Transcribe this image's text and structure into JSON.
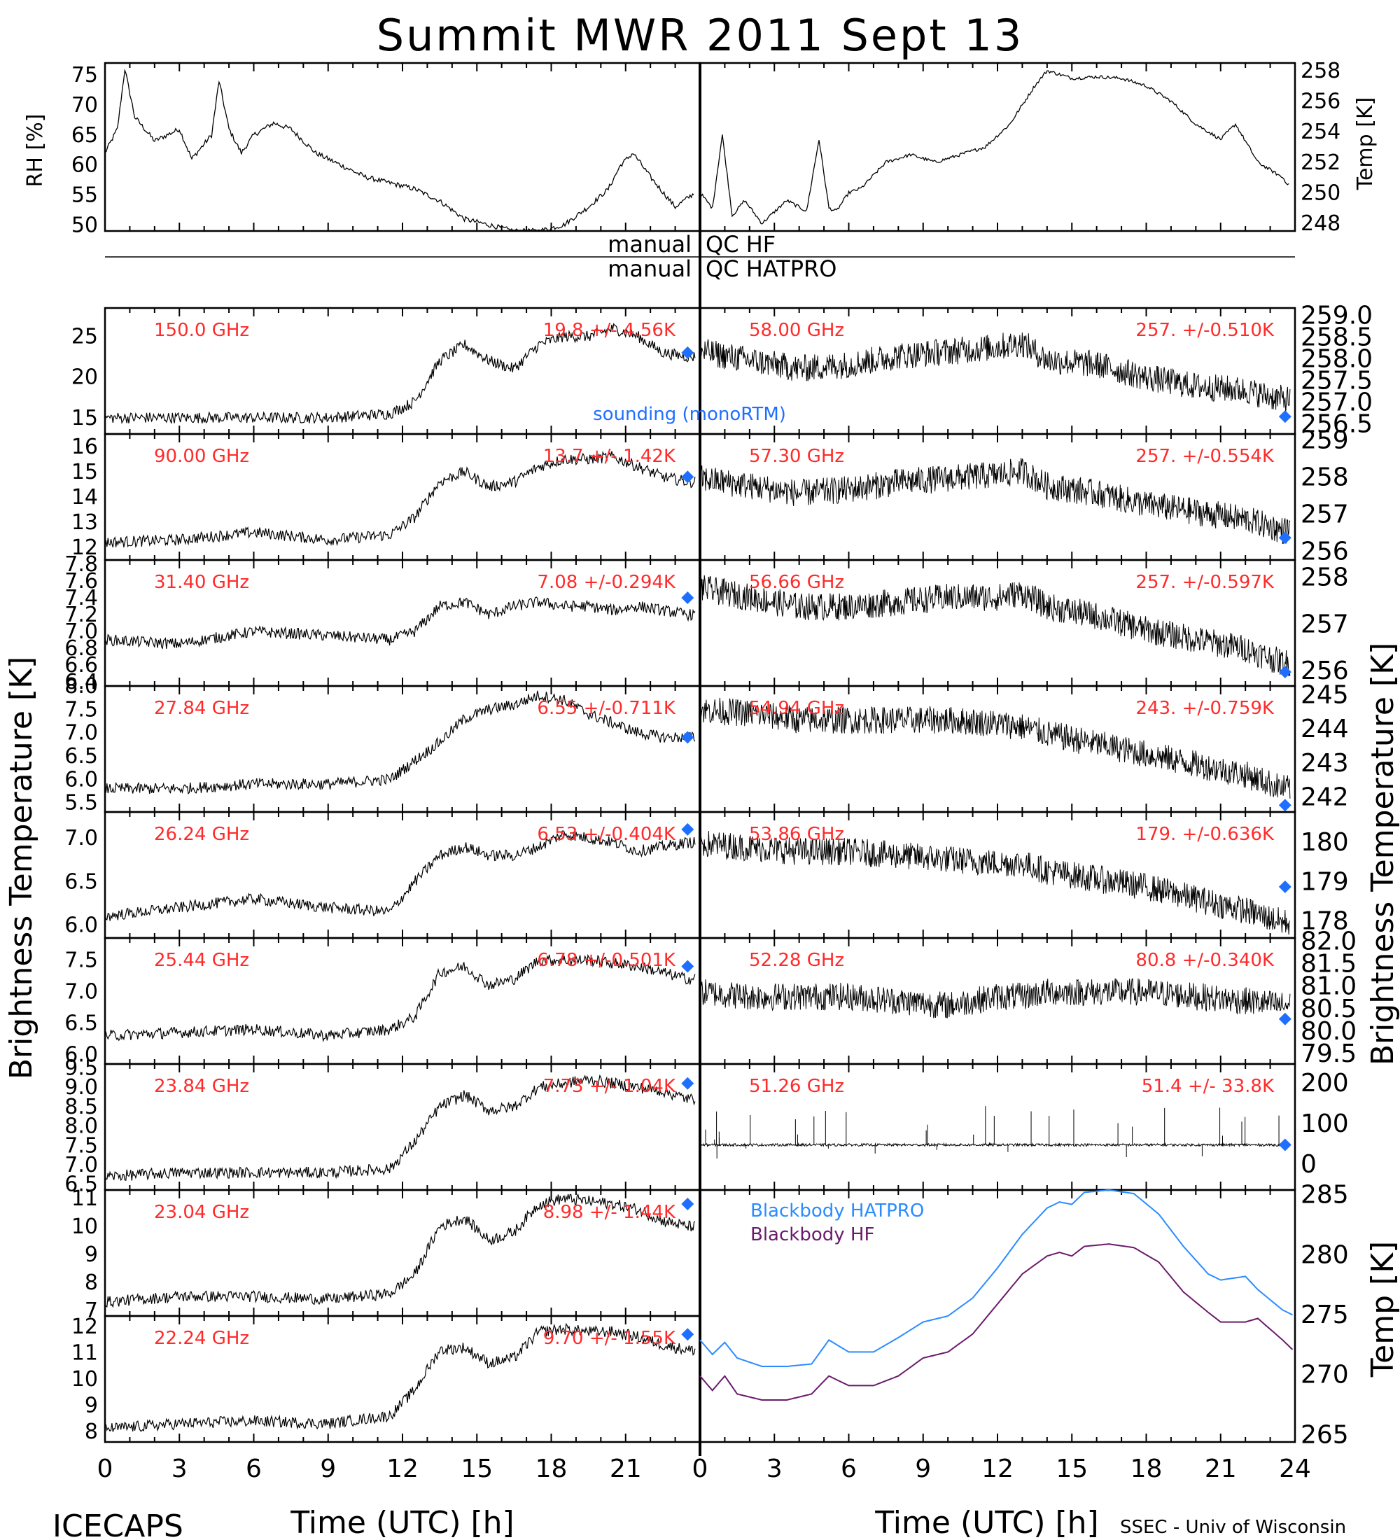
{
  "title": "Summit MWR 2011 Sept 13",
  "footer": {
    "project": "ICECAPS",
    "credit": "SSEC - Univ of Wisconsin"
  },
  "colors": {
    "label_red": "#ff2a2a",
    "sounding_blue": "#1f6fff",
    "hatpro_blue": "#2a8cff",
    "hf_purple": "#6a1a6a",
    "trace": "#000000"
  },
  "x_axis": {
    "title": "Time (UTC) [h]",
    "ticks": [
      "0",
      "3",
      "6",
      "9",
      "12",
      "15",
      "18",
      "21",
      "24"
    ],
    "range": [
      0,
      24
    ]
  },
  "met": {
    "left_ylabel": "RH [%]",
    "right_ylabel": "Temp [K]",
    "left_ticks": [
      "50",
      "55",
      "60",
      "65",
      "70",
      "75"
    ],
    "right_ticks": [
      "248",
      "250",
      "252",
      "254",
      "256",
      "258"
    ]
  },
  "qc": {
    "row1_left": "manual",
    "row1_right": "QC HF",
    "row2_left": "manual",
    "row2_right": "QC HATPRO"
  },
  "left_ylabel": "Brightness Temperature [K]",
  "right_ylabel": "Brightness Temperature [K]",
  "bb_ylabel": "Temp [K]",
  "sounding_label": "sounding (monoRTM)",
  "left_panels": [
    {
      "freq": "150.0 GHz",
      "stat": "19.8 +/- 4.56K",
      "ticks": [
        "15",
        "20",
        "25"
      ]
    },
    {
      "freq": "90.00 GHz",
      "stat": "13.7 +/- 1.42K",
      "ticks": [
        "12",
        "13",
        "14",
        "15",
        "16"
      ]
    },
    {
      "freq": "31.40 GHz",
      "stat": "7.08 +/-0.294K",
      "ticks": [
        "6.4",
        "6.6",
        "6.8",
        "7.0",
        "7.2",
        "7.4",
        "7.6",
        "7.8"
      ]
    },
    {
      "freq": "27.84 GHz",
      "stat": "6.55 +/-0.711K",
      "ticks": [
        "5.5",
        "6.0",
        "6.5",
        "7.0",
        "7.5",
        "8.0"
      ]
    },
    {
      "freq": "26.24 GHz",
      "stat": "6.53 +/-0.404K",
      "ticks": [
        "6.0",
        "6.5",
        "7.0"
      ]
    },
    {
      "freq": "25.44 GHz",
      "stat": "6.78 +/-0.501K",
      "ticks": [
        "6.0",
        "6.5",
        "7.0",
        "7.5"
      ]
    },
    {
      "freq": "23.84 GHz",
      "stat": "7.73 +/- 1.04K",
      "ticks": [
        "6.5",
        "7.0",
        "7.5",
        "8.0",
        "8.5",
        "9.0",
        "9.5"
      ]
    },
    {
      "freq": "23.04 GHz",
      "stat": "8.98 +/- 1.44K",
      "ticks": [
        "7",
        "8",
        "9",
        "10",
        "11"
      ]
    },
    {
      "freq": "22.24 GHz",
      "stat": "9.70 +/- 1.55K",
      "ticks": [
        "8",
        "9",
        "10",
        "11",
        "12"
      ]
    }
  ],
  "right_panels": [
    {
      "freq": "58.00 GHz",
      "stat": "257. +/-0.510K",
      "ticks": [
        "256.5",
        "257.0",
        "257.5",
        "258.0",
        "258.5",
        "259.0"
      ]
    },
    {
      "freq": "57.30 GHz",
      "stat": "257. +/-0.554K",
      "ticks": [
        "256",
        "257",
        "258",
        "259"
      ]
    },
    {
      "freq": "56.66 GHz",
      "stat": "257. +/-0.597K",
      "ticks": [
        "256",
        "257",
        "258"
      ]
    },
    {
      "freq": "54.94 GHz",
      "stat": "243. +/-0.759K",
      "ticks": [
        "242",
        "243",
        "244",
        "245"
      ]
    },
    {
      "freq": "53.86 GHz",
      "stat": "179. +/-0.636K",
      "ticks": [
        "178",
        "179",
        "180"
      ]
    },
    {
      "freq": "52.28 GHz",
      "stat": "80.8 +/-0.340K",
      "ticks": [
        "79.5",
        "80.0",
        "80.5",
        "81.0",
        "81.5",
        "82.0"
      ]
    },
    {
      "freq": "51.26 GHz",
      "stat": "51.4 +/- 33.8K",
      "ticks": [
        "0",
        "100",
        "200"
      ]
    }
  ],
  "blackbody": {
    "ticks": [
      "265",
      "270",
      "275",
      "280",
      "285"
    ],
    "legend": [
      {
        "name": "Blackbody HATPRO",
        "color": "#2a8cff"
      },
      {
        "name": "Blackbody HF",
        "color": "#6a1a6a"
      }
    ]
  },
  "chart_data": [
    {
      "type": "line",
      "title": "Summit MWR 2011 Sept 13",
      "panel": "met_rh",
      "ylabel": "RH [%]",
      "xlabel": "",
      "xlim": [
        0,
        24
      ],
      "ylim": [
        49,
        77
      ],
      "x": [
        0,
        0.5,
        0.8,
        1.2,
        2,
        3,
        3.5,
        4.3,
        4.6,
        5,
        5.5,
        6,
        6.8,
        7.5,
        8.5,
        9.5,
        10.5,
        11.5,
        12.5,
        13.5,
        14.5,
        15.5,
        16.5,
        17.5,
        18.5,
        19.5,
        20.3,
        20.8,
        21.3,
        22,
        23,
        24
      ],
      "values": [
        62,
        66,
        76,
        68,
        64,
        66,
        61,
        65,
        74,
        66,
        62,
        65,
        67,
        66,
        62,
        60,
        58,
        57,
        56,
        54,
        51,
        50,
        49,
        49,
        50,
        53,
        56,
        60,
        62,
        58,
        53,
        56
      ]
    },
    {
      "type": "line",
      "panel": "met_temp",
      "ylabel": "Temp [K]",
      "xlabel": "",
      "xlim": [
        0,
        24
      ],
      "ylim": [
        247.5,
        258.5
      ],
      "x": [
        0,
        0.5,
        0.9,
        1.3,
        1.8,
        2.5,
        3.5,
        4.3,
        4.8,
        5.2,
        5.5,
        6,
        6.5,
        7.5,
        8.5,
        9.5,
        10.5,
        11.5,
        12.5,
        13.5,
        14,
        15,
        16,
        17,
        18,
        19,
        20,
        21,
        21.6,
        22.5,
        23.5,
        24
      ],
      "values": [
        250,
        249,
        253.8,
        248.5,
        249.5,
        248,
        249.5,
        248.8,
        253.5,
        249,
        248.8,
        250,
        250.3,
        252,
        252.5,
        252,
        252.5,
        253,
        254.5,
        257,
        258,
        257.5,
        257.6,
        257.5,
        257,
        256,
        254.5,
        253.5,
        254.5,
        252,
        251,
        250
      ]
    },
    {
      "type": "line",
      "panel": "left_channels",
      "xlabel": "Time (UTC) [h]",
      "ylabel": "Brightness Temperature [K]",
      "xlim": [
        0,
        24
      ],
      "series_x": [
        0,
        3,
        6,
        9,
        11.5,
        12.5,
        13.5,
        14.5,
        15.5,
        16.5,
        17.5,
        18.5,
        19.5,
        20.5,
        21.5,
        22.5,
        23.5
      ],
      "series": [
        {
          "name": "150.0 GHz",
          "ylim": [
            13,
            28.5
          ],
          "values": [
            15,
            15,
            15,
            15,
            15.5,
            17,
            22,
            24,
            22,
            21,
            24,
            25,
            25,
            26,
            25,
            23,
            22.5
          ],
          "sounding": 23
        },
        {
          "name": "90.00 GHz",
          "ylim": [
            11.5,
            16.5
          ],
          "values": [
            12.2,
            12.3,
            12.6,
            12.3,
            12.5,
            13.2,
            14.6,
            15,
            14.4,
            14.6,
            15.2,
            15.5,
            15.5,
            15.6,
            15.2,
            14.8,
            14.6
          ],
          "sounding": 14.8
        },
        {
          "name": "31.40 GHz",
          "ylim": [
            6.35,
            7.85
          ],
          "values": [
            6.9,
            6.85,
            7.0,
            6.95,
            6.9,
            7.0,
            7.3,
            7.35,
            7.2,
            7.3,
            7.35,
            7.3,
            7.3,
            7.25,
            7.3,
            7.25,
            7.2
          ],
          "sounding": 7.4
        },
        {
          "name": "27.84 GHz",
          "ylim": [
            5.3,
            8.0
          ],
          "values": [
            5.8,
            5.8,
            5.9,
            5.9,
            6.0,
            6.4,
            6.8,
            7.3,
            7.5,
            7.6,
            7.8,
            7.7,
            7.4,
            7.2,
            7.0,
            6.9,
            6.9
          ],
          "sounding": 6.9
        },
        {
          "name": "26.24 GHz",
          "ylim": [
            5.85,
            7.3
          ],
          "values": [
            6.1,
            6.2,
            6.3,
            6.2,
            6.15,
            6.5,
            6.8,
            6.9,
            6.8,
            6.8,
            6.9,
            7.05,
            7.0,
            6.95,
            6.85,
            6.9,
            6.95
          ],
          "sounding": 7.1
        },
        {
          "name": "25.44 GHz",
          "ylim": [
            5.85,
            7.85
          ],
          "values": [
            6.3,
            6.35,
            6.4,
            6.3,
            6.4,
            6.6,
            7.3,
            7.4,
            7.1,
            7.2,
            7.5,
            7.5,
            7.5,
            7.45,
            7.4,
            7.3,
            7.2
          ],
          "sounding": 7.4
        },
        {
          "name": "23.84 GHz",
          "ylim": [
            6.35,
            9.6
          ],
          "values": [
            6.7,
            6.8,
            6.8,
            6.8,
            6.9,
            7.6,
            8.5,
            8.8,
            8.4,
            8.5,
            9.0,
            9.1,
            9.2,
            9.1,
            9.0,
            8.9,
            8.7
          ],
          "sounding": 9.1
        },
        {
          "name": "23.04 GHz",
          "ylim": [
            6.8,
            11.3
          ],
          "values": [
            7.3,
            7.5,
            7.5,
            7.4,
            7.6,
            8.3,
            10.0,
            10.3,
            9.5,
            9.8,
            10.8,
            11.0,
            10.9,
            10.8,
            10.6,
            10.2,
            10.0
          ],
          "sounding": 10.8
        },
        {
          "name": "22.24 GHz",
          "ylim": [
            7.6,
            12.4
          ],
          "values": [
            8.1,
            8.3,
            8.4,
            8.3,
            8.6,
            9.6,
            11.1,
            11.2,
            10.6,
            10.8,
            11.8,
            11.9,
            11.8,
            11.8,
            11.6,
            11.3,
            11.1
          ],
          "sounding": 11.7
        }
      ]
    },
    {
      "type": "line",
      "panel": "right_channels",
      "xlabel": "Time (UTC) [h]",
      "ylabel": "Brightness Temperature [K]",
      "xlim": [
        0,
        24
      ],
      "series_x": [
        0,
        2,
        4,
        6,
        8,
        10,
        12,
        13,
        14,
        16,
        18,
        20,
        22,
        23.5
      ],
      "series": [
        {
          "name": "58.00 GHz",
          "ylim": [
            256.3,
            259.2
          ],
          "values": [
            258.2,
            258.0,
            257.8,
            257.9,
            258.1,
            258.2,
            258.3,
            258.4,
            258.0,
            257.9,
            257.6,
            257.4,
            257.3,
            257.1
          ],
          "sounding": 256.7
        },
        {
          "name": "57.30 GHz",
          "ylim": [
            255.8,
            259.2
          ],
          "values": [
            258.0,
            257.8,
            257.6,
            257.7,
            257.9,
            258.0,
            258.1,
            258.2,
            257.8,
            257.6,
            257.3,
            257.1,
            256.9,
            256.6
          ],
          "sounding": 256.4
        },
        {
          "name": "56.66 GHz",
          "ylim": [
            255.7,
            258.4
          ],
          "values": [
            257.8,
            257.6,
            257.4,
            257.4,
            257.5,
            257.6,
            257.6,
            257.7,
            257.4,
            257.2,
            256.9,
            256.7,
            256.5,
            256.2
          ],
          "sounding": 256.0
        },
        {
          "name": "54.94 GHz",
          "ylim": [
            241.6,
            245.3
          ],
          "values": [
            244.6,
            244.5,
            244.3,
            244.3,
            244.3,
            244.3,
            244.2,
            244.1,
            243.9,
            243.6,
            243.3,
            243.0,
            242.7,
            242.3
          ],
          "sounding": 241.8
        },
        {
          "name": "53.86 GHz",
          "ylim": [
            177.6,
            180.8
          ],
          "values": [
            180.0,
            179.9,
            179.8,
            179.8,
            179.7,
            179.6,
            179.5,
            179.5,
            179.3,
            179.1,
            178.9,
            178.6,
            178.3,
            178.0
          ],
          "sounding": 178.9
        },
        {
          "name": "52.28 GHz",
          "ylim": [
            79.3,
            82.1
          ],
          "values": [
            80.9,
            80.8,
            80.8,
            80.8,
            80.7,
            80.6,
            80.8,
            80.8,
            80.9,
            80.9,
            80.9,
            80.8,
            80.7,
            80.6
          ],
          "sounding": 80.3
        },
        {
          "name": "51.26 GHz",
          "ylim": [
            -60,
            250
          ],
          "values": [
            51,
            51,
            51,
            51,
            51,
            51,
            51,
            51,
            51,
            51,
            51,
            51,
            51,
            51
          ],
          "sounding": 51
        }
      ]
    },
    {
      "type": "line",
      "panel": "blackbody",
      "ylabel": "Temp [K]",
      "xlabel": "Time (UTC) [h]",
      "xlim": [
        0,
        24
      ],
      "ylim": [
        264.5,
        285.5
      ],
      "x": [
        0,
        0.5,
        1,
        1.5,
        2.5,
        3.5,
        4.5,
        5.2,
        6,
        7,
        8,
        9,
        10,
        11,
        12,
        13,
        14,
        14.5,
        15,
        15.5,
        16.5,
        17.5,
        18.5,
        19.5,
        20.5,
        21,
        22,
        22.5,
        23.5,
        24
      ],
      "series": [
        {
          "name": "Blackbody HATPRO",
          "values": [
            273,
            271.8,
            272.8,
            271.5,
            270.8,
            270.8,
            271.0,
            273.0,
            272.0,
            272.0,
            273.2,
            274.5,
            275.0,
            276.5,
            279.0,
            281.8,
            284.0,
            284.5,
            284.3,
            285.3,
            285.5,
            285.2,
            283.5,
            280.8,
            278.5,
            278.0,
            278.3,
            277.2,
            275.5,
            275.0
          ]
        },
        {
          "name": "Blackbody HF",
          "values": [
            270.0,
            268.8,
            270.0,
            268.5,
            268.0,
            268.0,
            268.5,
            270.0,
            269.2,
            269.2,
            270.0,
            271.5,
            272.0,
            273.5,
            276.0,
            278.5,
            280.0,
            280.3,
            280.0,
            280.8,
            281.0,
            280.7,
            279.5,
            277.0,
            275.3,
            274.5,
            274.5,
            274.8,
            273.0,
            272.0
          ]
        }
      ]
    }
  ]
}
